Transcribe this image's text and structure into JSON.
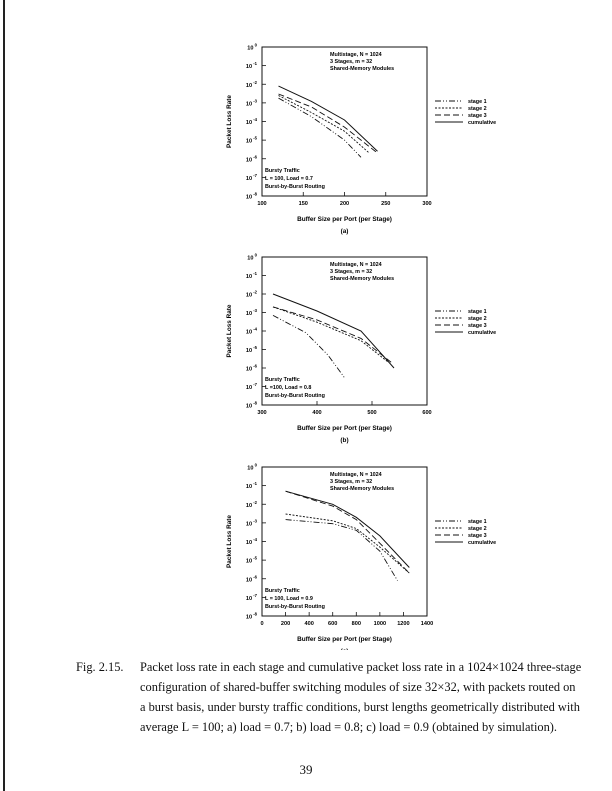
{
  "figure": {
    "panels": [
      {
        "info": [
          "Multistage, N = 1024",
          "3 Stages, m = 32",
          "Shared-Memory Modules"
        ],
        "traffic": [
          "Bursty Traffic",
          "L = 100, Load = 0.7",
          "Burst-by-Burst Routing"
        ],
        "ylabel": "Packet Loss Rate",
        "xlabel": "Buffer Size per Port (per Stage)",
        "sublabel": "(a)",
        "legend": [
          "stage 1",
          "stage 2",
          "stage 3",
          "cumulative"
        ]
      },
      {
        "info": [
          "Multistage, N = 1024",
          "3 Stages, m = 32",
          "Shared-Memory Modules"
        ],
        "traffic": [
          "Bursty Traffic",
          "L =100, Load = 0.8",
          "Burst-by-Burst Routing"
        ],
        "ylabel": "Packet Loss Rate",
        "xlabel": "Buffer Size per Port (per Stage)",
        "sublabel": "(b)",
        "legend": [
          "stage 1",
          "stage 2",
          "stage 3",
          "cumulative"
        ]
      },
      {
        "info": [
          "Multistage, N = 1024",
          "3 Stages, m = 32",
          "Shared-Memory Modules"
        ],
        "traffic": [
          "Bursty Traffic",
          "L = 100, Load = 0.9",
          "Burst-by-Burst Routing"
        ],
        "ylabel": "Packet Loss Rate",
        "xlabel": "Buffer Size per Port (per Stage)",
        "sublabel": "(c)",
        "legend": [
          "stage 1",
          "stage 2",
          "stage 3",
          "cumulative"
        ]
      }
    ]
  },
  "chart_data": [
    {
      "type": "line",
      "y_scale": "log",
      "ylim": [
        1e-08,
        1
      ],
      "xlim": [
        100,
        300
      ],
      "xticks": [
        100,
        150,
        200,
        250,
        300
      ],
      "yticks": [
        "10^0",
        "10^-1",
        "10^-2",
        "10^-3",
        "10^-4",
        "10^-5",
        "10^-6",
        "10^-7",
        "10^-8"
      ],
      "ylabel": "Packet Loss Rate",
      "xlabel": "Buffer Size per Port (per Stage)",
      "legend_position": "right",
      "series": [
        {
          "name": "stage 1",
          "x": [
            120,
            160,
            200,
            220
          ],
          "y": [
            0.0018,
            0.00018,
            1e-05,
            1.2e-06
          ]
        },
        {
          "name": "stage 2",
          "x": [
            120,
            160,
            200,
            230
          ],
          "y": [
            0.0025,
            0.0003,
            3e-05,
            2e-06
          ]
        },
        {
          "name": "stage 3",
          "x": [
            120,
            160,
            200,
            240
          ],
          "y": [
            0.003,
            0.0006,
            5e-05,
            2e-06
          ]
        },
        {
          "name": "cumulative",
          "x": [
            120,
            160,
            200,
            240
          ],
          "y": [
            0.008,
            0.0012,
            0.00012,
            2.5e-06
          ]
        }
      ]
    },
    {
      "type": "line",
      "y_scale": "log",
      "ylim": [
        1e-08,
        1
      ],
      "xlim": [
        300,
        600
      ],
      "xticks": [
        300,
        400,
        500,
        600
      ],
      "yticks": [
        "10^0",
        "10^-1",
        "10^-2",
        "10^-3",
        "10^-4",
        "10^-5",
        "10^-6",
        "10^-7",
        "10^-8"
      ],
      "ylabel": "Packet Loss Rate",
      "xlabel": "Buffer Size per Port (per Stage)",
      "legend_position": "right",
      "series": [
        {
          "name": "stage 1",
          "x": [
            320,
            380,
            420,
            450
          ],
          "y": [
            0.0007,
            8e-05,
            5e-06,
            3e-07
          ]
        },
        {
          "name": "stage 2",
          "x": [
            320,
            400,
            480,
            530
          ],
          "y": [
            0.002,
            0.0003,
            3e-05,
            2e-06
          ]
        },
        {
          "name": "stage 3",
          "x": [
            320,
            400,
            480,
            535
          ],
          "y": [
            0.002,
            0.0004,
            4e-05,
            2e-06
          ]
        },
        {
          "name": "cumulative",
          "x": [
            320,
            400,
            480,
            540
          ],
          "y": [
            0.01,
            0.0012,
            0.0001,
            1e-06
          ]
        }
      ]
    },
    {
      "type": "line",
      "y_scale": "log",
      "ylim": [
        1e-08,
        1
      ],
      "xlim": [
        0,
        1400
      ],
      "xticks": [
        0,
        200,
        400,
        600,
        800,
        1000,
        1200,
        1400
      ],
      "yticks": [
        "10^0",
        "10^-1",
        "10^-2",
        "10^-3",
        "10^-4",
        "10^-5",
        "10^-6",
        "10^-7",
        "10^-8"
      ],
      "ylabel": "Packet Loss Rate",
      "xlabel": "Buffer Size per Port (per Stage)",
      "legend_position": "right",
      "series": [
        {
          "name": "stage 1",
          "x": [
            200,
            600,
            800,
            1000,
            1150
          ],
          "y": [
            0.0015,
            0.0009,
            0.0004,
            3e-05,
            8e-07
          ]
        },
        {
          "name": "stage 2",
          "x": [
            200,
            600,
            800,
            1000,
            1250
          ],
          "y": [
            0.003,
            0.0013,
            0.0005,
            5e-05,
            2e-06
          ]
        },
        {
          "name": "stage 3",
          "x": [
            200,
            600,
            800,
            1000,
            1250
          ],
          "y": [
            0.05,
            0.008,
            0.0015,
            8e-05,
            2e-06
          ]
        },
        {
          "name": "cumulative",
          "x": [
            200,
            600,
            800,
            1000,
            1250
          ],
          "y": [
            0.05,
            0.01,
            0.002,
            0.0002,
            4e-06
          ]
        }
      ]
    }
  ],
  "caption": {
    "number": "Fig. 2.15.",
    "text": "Packet loss rate in each stage and cumulative packet loss rate in a 1024×1024 three-stage configuration of shared-buffer switching modules of size 32×32, with packets routed on a burst basis, under bursty traffic conditions, burst lengths geometrically distributed with average L = 100; a) load = 0.7; b) load = 0.8; c) load = 0.9 (obtained by simulation)."
  },
  "page_number": "39"
}
